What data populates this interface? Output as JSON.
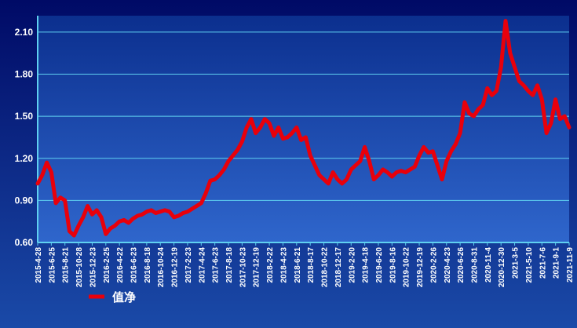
{
  "chart_data": {
    "type": "line",
    "categories": [
      "2015-4-28",
      null,
      null,
      "2015-6-25",
      null,
      null,
      "2015-8-21",
      null,
      null,
      "2015-10-28",
      null,
      null,
      "2015-12-23",
      null,
      null,
      "2016-2-25",
      null,
      null,
      "2016-4-22",
      null,
      null,
      "2016-6-23",
      null,
      null,
      "2016-8-18",
      null,
      null,
      "2016-10-24",
      null,
      null,
      "2016-12-19",
      null,
      null,
      "2017-2-23",
      null,
      null,
      "2017-4-24",
      null,
      null,
      "2017-6-23",
      null,
      null,
      "2017-8-18",
      null,
      null,
      "2017-10-23",
      null,
      null,
      "2017-12-19",
      null,
      null,
      "2018-2-22",
      null,
      null,
      "2018-4-23",
      null,
      null,
      "2018-6-21",
      null,
      null,
      "2018-8-17",
      null,
      null,
      "2018-10-22",
      null,
      null,
      "2018-12-17",
      null,
      null,
      "2019-2-20",
      null,
      null,
      "2019-4-18",
      null,
      null,
      "2019-6-20",
      null,
      null,
      "2019-8-16",
      null,
      null,
      "2019-10-22",
      null,
      null,
      "2019-12-19",
      null,
      null,
      "2020-2-26",
      null,
      null,
      "2020-4-23",
      null,
      null,
      "2020-6-26",
      null,
      null,
      "2020-8-31",
      null,
      null,
      "2020-11-4",
      null,
      null,
      "2020-12-30",
      null,
      null,
      "2021-3-5",
      null,
      null,
      "2021-5-10",
      null,
      null,
      "2021-7-6",
      null,
      null,
      "2021-9-1",
      null,
      null,
      "2021-11-9"
    ],
    "series": [
      {
        "name": "值净",
        "color": "#e8000b",
        "values": [
          1.02,
          1.08,
          1.17,
          1.1,
          0.88,
          0.92,
          0.9,
          0.68,
          0.65,
          0.72,
          0.78,
          0.86,
          0.8,
          0.83,
          0.78,
          0.66,
          0.7,
          0.72,
          0.75,
          0.76,
          0.74,
          0.77,
          0.79,
          0.8,
          0.82,
          0.83,
          0.81,
          0.82,
          0.83,
          0.82,
          0.78,
          0.79,
          0.81,
          0.82,
          0.84,
          0.86,
          0.88,
          0.95,
          1.04,
          1.05,
          1.08,
          1.12,
          1.18,
          1.22,
          1.26,
          1.32,
          1.42,
          1.48,
          1.38,
          1.42,
          1.48,
          1.45,
          1.36,
          1.42,
          1.34,
          1.35,
          1.38,
          1.42,
          1.33,
          1.35,
          1.22,
          1.15,
          1.08,
          1.05,
          1.02,
          1.1,
          1.05,
          1.02,
          1.05,
          1.12,
          1.15,
          1.18,
          1.28,
          1.18,
          1.05,
          1.08,
          1.12,
          1.1,
          1.07,
          1.1,
          1.11,
          1.1,
          1.12,
          1.14,
          1.22,
          1.28,
          1.24,
          1.25,
          1.15,
          1.05,
          1.18,
          1.25,
          1.3,
          1.38,
          1.6,
          1.52,
          1.5,
          1.55,
          1.58,
          1.7,
          1.65,
          1.68,
          1.85,
          2.18,
          1.95,
          1.85,
          1.75,
          1.72,
          1.68,
          1.65,
          1.72,
          1.62,
          1.38,
          1.45,
          1.62,
          1.48,
          1.5,
          1.42
        ]
      }
    ],
    "ylim": [
      0.6,
      2.2
    ],
    "yticks": [
      {
        "value": 0.6,
        "label": "0.60"
      },
      {
        "value": 0.9,
        "label": "0.90"
      },
      {
        "value": 1.2,
        "label": "1.20"
      },
      {
        "value": 1.5,
        "label": "1.50"
      },
      {
        "value": 1.8,
        "label": "1.80"
      },
      {
        "value": 2.1,
        "label": "2.10"
      }
    ],
    "grid": true
  }
}
